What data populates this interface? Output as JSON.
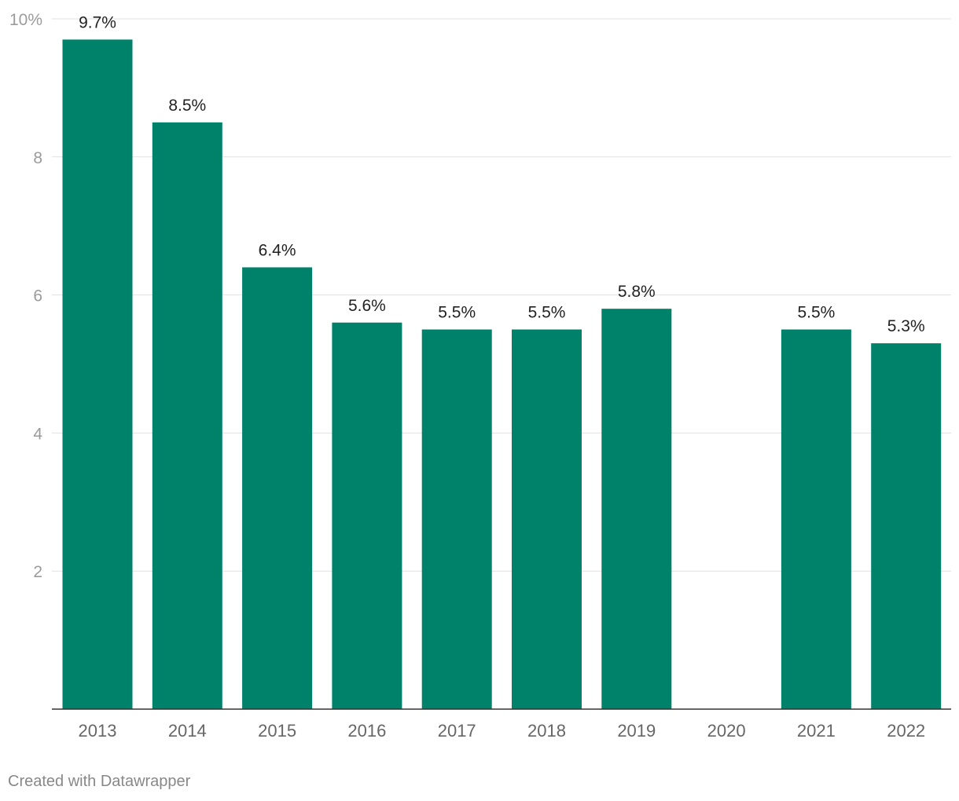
{
  "chart_data": {
    "type": "bar",
    "categories": [
      "2013",
      "2014",
      "2015",
      "2016",
      "2017",
      "2018",
      "2019",
      "2020",
      "2021",
      "2022"
    ],
    "values": [
      9.7,
      8.5,
      6.4,
      5.6,
      5.5,
      5.5,
      5.8,
      null,
      5.5,
      5.3
    ],
    "data_labels": [
      "9.7%",
      "8.5%",
      "6.4%",
      "5.6%",
      "5.5%",
      "5.5%",
      "5.8%",
      "",
      "5.5%",
      "5.3%"
    ],
    "y_ticks": [
      {
        "value": 10,
        "label": "10%"
      },
      {
        "value": 8,
        "label": "8"
      },
      {
        "value": 6,
        "label": "6"
      },
      {
        "value": 4,
        "label": "4"
      },
      {
        "value": 2,
        "label": "2"
      }
    ],
    "ylim": [
      0,
      10
    ],
    "grid": true,
    "bar_color": "#00816a",
    "title": "",
    "xlabel": "",
    "ylabel": ""
  },
  "footer": {
    "credit": "Created with Datawrapper"
  }
}
